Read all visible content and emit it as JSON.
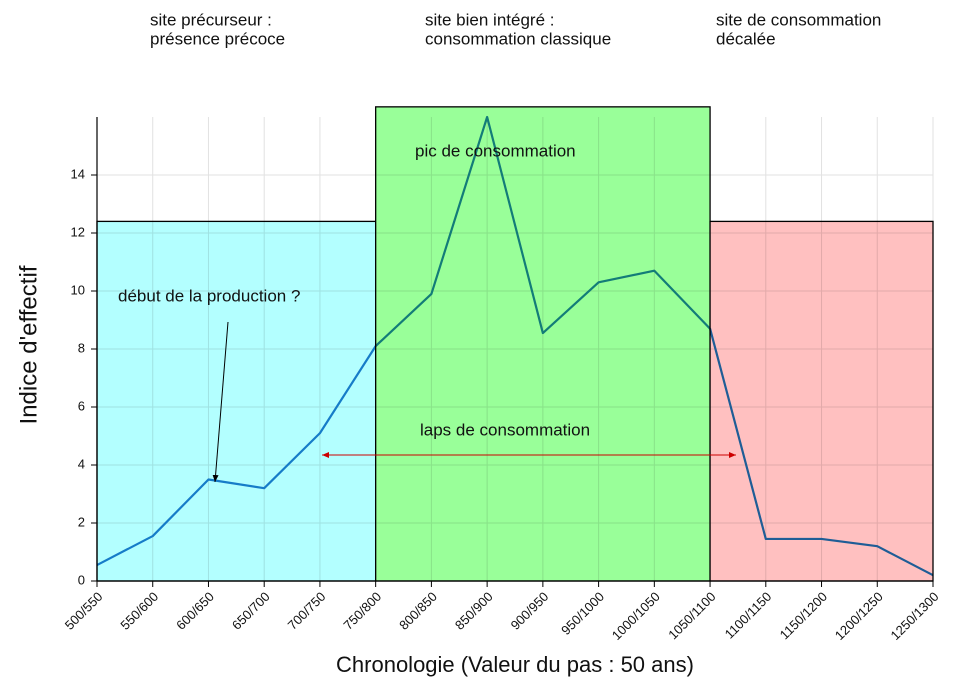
{
  "chart_data": {
    "type": "line",
    "x_label": "Chronologie (Valeur du pas : 50 ans)",
    "y_label": "Indice d'effectif",
    "categories": [
      "500/550",
      "550/600",
      "600/650",
      "650/700",
      "700/750",
      "750/800",
      "800/850",
      "850/900",
      "900/950",
      "950/1000",
      "1000/1050",
      "1050/1100",
      "1100/1150",
      "1150/1200",
      "1200/1250",
      "1250/1300"
    ],
    "values": [
      0.55,
      1.55,
      3.5,
      3.2,
      5.1,
      8.1,
      9.9,
      16.0,
      8.55,
      10.3,
      10.7,
      8.7,
      1.45,
      1.45,
      1.2,
      0.2
    ],
    "color": "#1f7cc8",
    "ylim": [
      0,
      16
    ],
    "yticks": [
      0,
      2,
      4,
      6,
      8,
      10,
      12,
      14
    ],
    "grid": true,
    "regions": [
      {
        "label": [
          "site précurseur :",
          "présence précoce"
        ],
        "start": "500/550",
        "end": "750/800",
        "top": 12.4,
        "color": "#b3ffff"
      },
      {
        "label": [
          "site bien intégré :",
          "consommation classique"
        ],
        "start": "750/800",
        "end": "1050/1100",
        "top": 16.35,
        "color": "#99ff99"
      },
      {
        "label": [
          "site de consommation",
          "décalée"
        ],
        "start": "1050/1100",
        "end": "1250/1300",
        "top": 12.4,
        "color": "#ffc0c0"
      }
    ],
    "annotations": [
      "pic de consommation",
      "début de la production ?",
      "laps de consommation"
    ]
  }
}
